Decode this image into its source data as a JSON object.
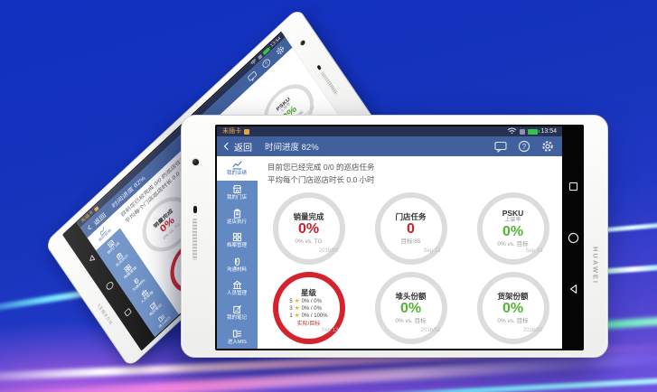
{
  "device": {
    "brand": "HUAWEI"
  },
  "colors": {
    "red": "#cb1f2b",
    "green": "#53b436",
    "accent_blue": "#41619e",
    "sidebar_blue": "#6389c2",
    "status_navy": "#273253",
    "star_gold": "#f0a824",
    "ring_gray": "#dcdcdc",
    "ring_red": "#d5232e",
    "background_blue": "#1634bc",
    "streak_pink": "#ff8ae4",
    "streak_cyan": "#6fe4ff"
  },
  "status_bar": {
    "no_sim": "未插卡",
    "time": "13:54",
    "icons": [
      "sim-warning-icon",
      "wifi-icon",
      "hspa-icon",
      "battery-icon"
    ]
  },
  "nav_bar": {
    "back": "返回",
    "progress": "时间进度 82%",
    "icons": [
      "message-icon",
      "help-icon",
      "settings-icon"
    ]
  },
  "summary": {
    "line1": "目前您已经完成 0/0 的巡店任务",
    "line2": "平均每个门店巡店时长 0.0 小时"
  },
  "sidebar": {
    "items": [
      {
        "label": "我的业绩",
        "icon": "chart-icon",
        "active": true
      },
      {
        "label": "我的门店",
        "icon": "store-icon",
        "active": false
      },
      {
        "label": "巡店执行",
        "icon": "clipboard-icon",
        "active": false
      },
      {
        "label": "档案管理",
        "icon": "grid-icon",
        "active": false
      },
      {
        "label": "沟通材料",
        "icon": "paperclip-icon",
        "active": false
      },
      {
        "label": "人员管理",
        "icon": "bank-icon",
        "active": false
      },
      {
        "label": "我的笔记",
        "icon": "note-icon",
        "active": false
      },
      {
        "label": "进入MIS",
        "icon": "mis-icon",
        "active": false
      }
    ]
  },
  "metrics": [
    {
      "type": "value",
      "title": "销量完成",
      "subtitle": "",
      "value": "0%",
      "color": "red",
      "sub": "0% vs. TG",
      "date": "2016/02",
      "ring": "gray"
    },
    {
      "type": "value",
      "title": "门店任务",
      "subtitle": "",
      "value": "0",
      "color": "red",
      "sub": "目标:85",
      "date": "Sep 13",
      "ring": "gray"
    },
    {
      "type": "value",
      "title": "PSKU",
      "subtitle": "上架率",
      "value": "0%",
      "color": "green",
      "sub": "0% vs. 目标",
      "date": "Sep 13",
      "ring": "gray"
    },
    {
      "type": "stars",
      "title": "星级",
      "rows": [
        {
          "level": "5",
          "value": "0% / 0%"
        },
        {
          "level": "3",
          "value": "0% / 0%"
        },
        {
          "level": "1",
          "value": "0% / 100%"
        }
      ],
      "foot": "实际/目标",
      "date": "Sep 13",
      "ring": "red"
    },
    {
      "type": "value",
      "title": "堆头份额",
      "subtitle": "",
      "value": "0%",
      "color": "green",
      "sub": "0% vs. 目标",
      "date": "2016/02",
      "ring": "gray"
    },
    {
      "type": "value",
      "title": "货架份额",
      "subtitle": "",
      "value": "0%",
      "color": "green",
      "sub": "0% vs. 目标",
      "date": "2016/02",
      "ring": "gray"
    }
  ],
  "android_nav": {
    "icons": [
      "recents-icon",
      "home-icon",
      "back-icon"
    ]
  }
}
